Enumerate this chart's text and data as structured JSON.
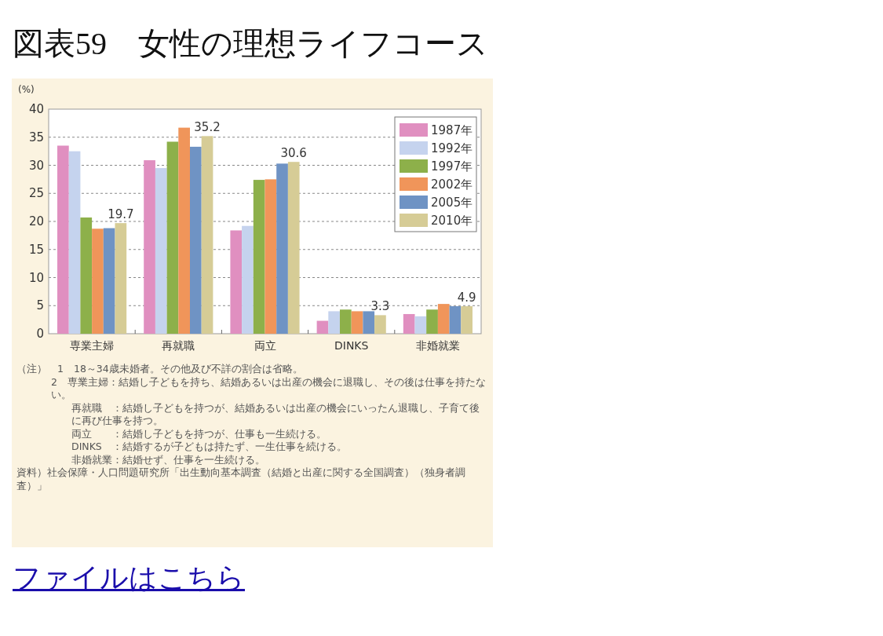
{
  "chart_data": {
    "type": "bar",
    "title": "図表59　女性の理想ライフコース",
    "ylabel": "(%)",
    "categories": [
      "専業主婦",
      "再就職",
      "両立",
      "DINKS",
      "非婚就業"
    ],
    "ylim": [
      0,
      40
    ],
    "yticks": [
      0,
      5,
      10,
      15,
      20,
      25,
      30,
      35,
      40
    ],
    "grid": "y",
    "legend": "top right",
    "series": [
      {
        "name": "1987年",
        "color": "#e08fc0",
        "values": [
          33.5,
          30.9,
          18.4,
          2.3,
          3.5
        ]
      },
      {
        "name": "1992年",
        "color": "#c5d3ee",
        "values": [
          32.5,
          29.5,
          19.2,
          4.0,
          3.1
        ]
      },
      {
        "name": "1997年",
        "color": "#8db04a",
        "values": [
          20.7,
          34.2,
          27.4,
          4.3,
          4.3
        ]
      },
      {
        "name": "2002年",
        "color": "#f0955a",
        "values": [
          18.7,
          36.7,
          27.5,
          4.0,
          5.3
        ]
      },
      {
        "name": "2005年",
        "color": "#6f93c4",
        "values": [
          18.8,
          33.3,
          30.3,
          4.0,
          4.9
        ]
      },
      {
        "name": "2010年",
        "color": "#d6cc96",
        "values": [
          19.7,
          35.2,
          30.6,
          3.3,
          4.9
        ],
        "value_labels": [
          "19.7",
          "35.2",
          "30.6",
          "3.3",
          "4.9"
        ]
      }
    ],
    "annotations": [
      "（注）　1　18～34歳未婚者。その他及び不詳の割合は省略。",
      "2　専業主婦：結婚し子どもを持ち、結婚あるいは出産の機会に退職し、その後は仕事を持たない。",
      "再就職　：結婚し子どもを持つが、結婚あるいは出産の機会にいったん退職し、子育て後に再び仕事を持つ。",
      "両立　　：結婚し子どもを持つが、仕事も一生続ける。",
      "DINKS　：結婚するが子どもは持たず、一生仕事を続ける。",
      "非婚就業：結婚せず、仕事を一生続ける。",
      "資料）社会保障・人口問題研究所「出生動向基本調査（結婚と出産に関する全国調査）（独身者調査）」",
      "ファイルはこちら"
    ]
  }
}
